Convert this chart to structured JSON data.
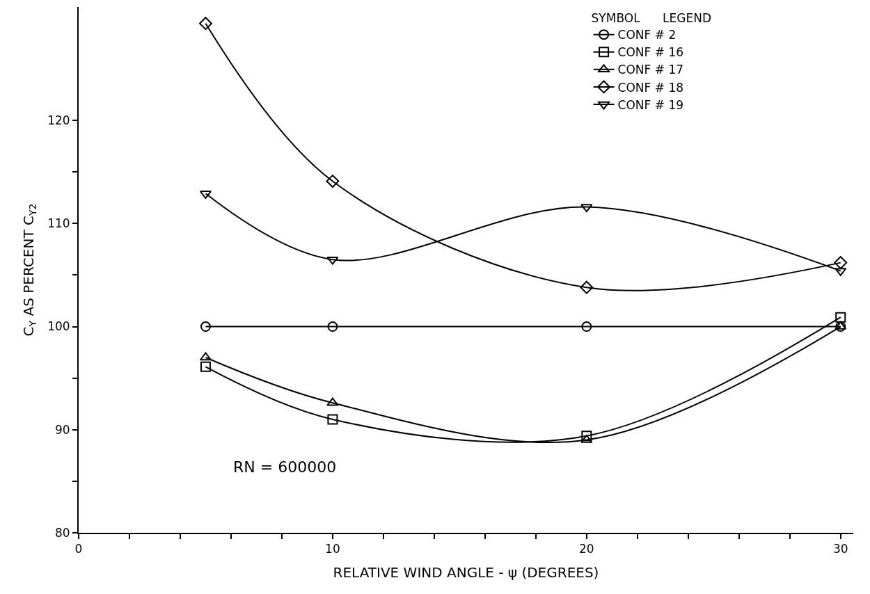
{
  "chart_data": {
    "type": "line",
    "xlabel": "RELATIVE WIND ANGLE - ψ (DEGREES)",
    "ylabel": "C$_{Y}$ AS PERCENT C$_{Y2}$",
    "legend_title": "SYMBOL      LEGEND",
    "annotations": [
      "RN = 600000"
    ],
    "x": [
      5,
      10,
      20,
      30
    ],
    "series": [
      {
        "name": "CONF # 2",
        "color": "#000000",
        "marker": "circle",
        "values": [
          100,
          100,
          100,
          100
        ]
      },
      {
        "name": "CONF # 16",
        "color": "#000000",
        "marker": "square",
        "values": [
          96.1,
          91.0,
          89.4,
          100.9
        ]
      },
      {
        "name": "CONF # 17",
        "color": "#000000",
        "marker": "triangle",
        "values": [
          97.0,
          92.6,
          89.0,
          100
        ]
      },
      {
        "name": "CONF # 18",
        "color": "#000000",
        "marker": "diamond",
        "values": [
          129.4,
          114.1,
          103.8,
          106.2
        ]
      },
      {
        "name": "CONF # 19",
        "color": "#000000",
        "marker": "triangle-down",
        "values": [
          112.9,
          106.5,
          111.6,
          105.4
        ]
      }
    ],
    "xlim": [
      0,
      30.5
    ],
    "xticks": [
      0,
      {
        "value": 2,
        "label": null
      },
      {
        "value": 4,
        "label": null
      },
      {
        "value": 6,
        "label": null
      },
      {
        "value": 8,
        "label": null
      },
      10,
      {
        "value": 12,
        "label": null
      },
      {
        "value": 14,
        "label": null
      },
      {
        "value": 16,
        "label": null
      },
      {
        "value": 18,
        "label": null
      },
      20,
      {
        "value": 22,
        "label": null
      },
      {
        "value": 24,
        "label": null
      },
      {
        "value": 26,
        "label": null
      },
      {
        "value": 28,
        "label": null
      },
      30
    ],
    "ylim": [
      80,
      131
    ],
    "yticks": [
      80,
      {
        "value": 85,
        "label": null
      },
      90,
      {
        "value": 95,
        "label": null
      },
      100,
      {
        "value": 105,
        "label": null
      },
      110,
      {
        "value": 115,
        "label": null
      },
      120
    ],
    "grid": false,
    "legend": "top right",
    "line_style": "solid"
  }
}
